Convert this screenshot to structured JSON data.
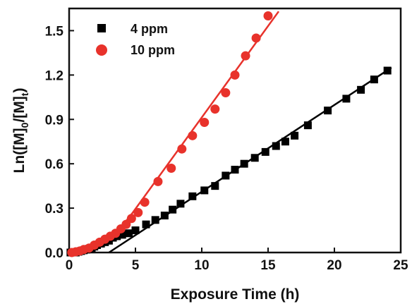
{
  "chart_data": {
    "type": "scatter",
    "xlabel": "Exposure Time (h)",
    "ylabel": {
      "base": "Ln([M]",
      "sub1": "0",
      "mid": "/[M]",
      "sub2": "t",
      "end": ")"
    },
    "xlim": [
      0,
      25
    ],
    "ylim": [
      0,
      1.65
    ],
    "xticks": [
      "0",
      "5",
      "10",
      "15",
      "20",
      "25"
    ],
    "yticks": [
      "0.0",
      "0.3",
      "0.6",
      "0.9",
      "1.2",
      "1.5"
    ],
    "legend_position": "top-left",
    "grid": false,
    "series": [
      {
        "name": "4 ppm",
        "marker": "square",
        "color": "#000000",
        "points": [
          [
            0.1,
            0.0
          ],
          [
            0.3,
            0.0
          ],
          [
            0.5,
            0.0
          ],
          [
            0.7,
            0.005
          ],
          [
            0.9,
            0.01
          ],
          [
            1.1,
            0.015
          ],
          [
            1.3,
            0.02
          ],
          [
            1.5,
            0.025
          ],
          [
            1.7,
            0.03
          ],
          [
            1.9,
            0.04
          ],
          [
            2.1,
            0.05
          ],
          [
            2.4,
            0.06
          ],
          [
            2.7,
            0.07
          ],
          [
            3.0,
            0.08
          ],
          [
            3.3,
            0.1
          ],
          [
            3.6,
            0.11
          ],
          [
            4.0,
            0.12
          ],
          [
            4.5,
            0.13
          ],
          [
            5.0,
            0.15
          ],
          [
            5.8,
            0.19
          ],
          [
            6.5,
            0.22
          ],
          [
            7.2,
            0.25
          ],
          [
            7.8,
            0.29
          ],
          [
            8.4,
            0.33
          ],
          [
            9.3,
            0.38
          ],
          [
            10.2,
            0.42
          ],
          [
            11.0,
            0.45
          ],
          [
            11.8,
            0.52
          ],
          [
            12.5,
            0.56
          ],
          [
            13.2,
            0.6
          ],
          [
            14.0,
            0.64
          ],
          [
            14.8,
            0.68
          ],
          [
            15.6,
            0.72
          ],
          [
            16.3,
            0.75
          ],
          [
            17.0,
            0.79
          ],
          [
            18.0,
            0.86
          ],
          [
            19.5,
            0.96
          ],
          [
            20.9,
            1.04
          ],
          [
            22.0,
            1.1
          ],
          [
            23.0,
            1.17
          ],
          [
            24.0,
            1.23
          ]
        ],
        "fit": [
          [
            3.0,
            0.0
          ],
          [
            24.3,
            1.25
          ]
        ]
      },
      {
        "name": "10 ppm",
        "marker": "circle",
        "color": "#e8322b",
        "points": [
          [
            0.2,
            0.0
          ],
          [
            0.5,
            0.005
          ],
          [
            0.8,
            0.01
          ],
          [
            1.1,
            0.02
          ],
          [
            1.5,
            0.03
          ],
          [
            1.9,
            0.05
          ],
          [
            2.3,
            0.07
          ],
          [
            2.7,
            0.09
          ],
          [
            3.1,
            0.11
          ],
          [
            3.5,
            0.13
          ],
          [
            3.9,
            0.16
          ],
          [
            4.3,
            0.19
          ],
          [
            4.7,
            0.23
          ],
          [
            5.2,
            0.27
          ],
          [
            5.7,
            0.34
          ],
          [
            6.7,
            0.48
          ],
          [
            7.7,
            0.57
          ],
          [
            8.5,
            0.7
          ],
          [
            9.3,
            0.79
          ],
          [
            10.2,
            0.88
          ],
          [
            11.0,
            0.97
          ],
          [
            11.8,
            1.08
          ],
          [
            12.5,
            1.2
          ],
          [
            13.3,
            1.33
          ],
          [
            14.1,
            1.45
          ],
          [
            15.0,
            1.6
          ]
        ],
        "fit": [
          [
            0.0,
            0.0
          ],
          [
            1.0,
            0.012
          ],
          [
            2.0,
            0.04
          ],
          [
            3.0,
            0.09
          ],
          [
            4.0,
            0.18
          ],
          [
            4.8,
            0.27
          ],
          [
            15.8,
            1.63
          ]
        ]
      }
    ]
  }
}
